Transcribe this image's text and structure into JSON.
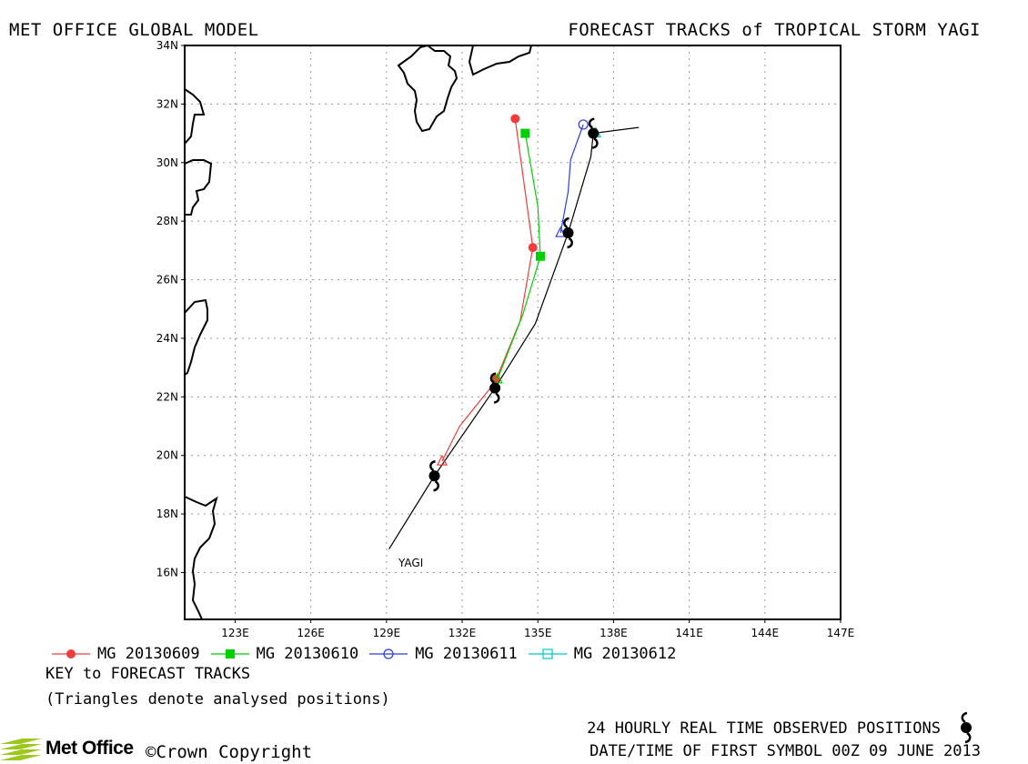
{
  "header": {
    "left_title": "MET OFFICE GLOBAL MODEL",
    "right_title": "FORECAST TRACKS of TROPICAL STORM YAGI"
  },
  "map": {
    "lon_range": [
      121,
      147
    ],
    "lat_range": [
      14.4,
      34
    ],
    "lat_labels": [
      "16N",
      "18N",
      "20N",
      "22N",
      "24N",
      "26N",
      "28N",
      "30N",
      "32N",
      "34N"
    ],
    "lon_labels": [
      "123E",
      "126E",
      "129E",
      "132E",
      "135E",
      "138E",
      "141E",
      "144E",
      "147E"
    ],
    "storm_label": "YAGI",
    "colors": {
      "observed": "#000000",
      "f0609": "#f03c3c",
      "f0610": "#00d000",
      "f0611": "#2a3ce0",
      "f0612": "#00c8c8"
    }
  },
  "chart_data": {
    "type": "scatter",
    "title": "FORECAST TRACKS of TROPICAL STORM YAGI",
    "observed_track": {
      "name": "YAGI",
      "positions": [
        [
          129.1,
          16.8
        ],
        [
          130.9,
          19.3
        ],
        [
          133.3,
          22.3
        ],
        [
          134.9,
          24.5
        ],
        [
          136.2,
          27.6
        ],
        [
          137.1,
          30.2
        ],
        [
          137.2,
          31.0
        ],
        [
          139.0,
          31.2
        ]
      ],
      "symbol_positions": [
        [
          130.9,
          19.3
        ],
        [
          133.3,
          22.3
        ],
        [
          136.2,
          27.6
        ],
        [
          137.2,
          31.0
        ]
      ]
    },
    "series": [
      {
        "name": "MG 20130609",
        "color": "#f03c3c",
        "marker": "circle",
        "analysed": [
          131.2,
          19.8
        ],
        "track": [
          [
            131.2,
            19.8
          ],
          [
            131.9,
            21.0
          ],
          [
            133.3,
            22.5
          ],
          [
            134.3,
            24.6
          ],
          [
            134.8,
            27.1
          ],
          [
            134.1,
            31.5
          ]
        ],
        "markers": [
          [
            133.3,
            22.6
          ],
          [
            134.8,
            27.1
          ],
          [
            134.1,
            31.5
          ]
        ]
      },
      {
        "name": "MG 20130610",
        "color": "#00d000",
        "marker": "square",
        "analysed": [
          133.4,
          22.6
        ],
        "track": [
          [
            133.4,
            22.6
          ],
          [
            134.4,
            24.8
          ],
          [
            135.1,
            26.8
          ],
          [
            135.0,
            28.5
          ],
          [
            134.5,
            31.0
          ]
        ],
        "markers": [
          [
            135.1,
            26.8
          ],
          [
            134.5,
            31.0
          ]
        ]
      },
      {
        "name": "MG 20130611",
        "color": "#2a3ce0",
        "marker": "circle-open",
        "analysed": [
          135.9,
          27.6
        ],
        "track": [
          [
            135.9,
            27.6
          ],
          [
            136.2,
            29.0
          ],
          [
            136.3,
            30.1
          ],
          [
            136.8,
            31.3
          ]
        ],
        "markers": [
          [
            136.8,
            31.3
          ]
        ]
      },
      {
        "name": "MG 20130612",
        "color": "#00c8c8",
        "marker": "square-open",
        "analysed": [
          137.3,
          31.0
        ],
        "track": [
          [
            137.3,
            31.0
          ]
        ],
        "markers": []
      }
    ]
  },
  "legend": {
    "items": [
      {
        "label": "MG 20130609",
        "color": "#f03c3c",
        "marker": "circle"
      },
      {
        "label": "MG 20130610",
        "color": "#00d000",
        "marker": "square"
      },
      {
        "label": "MG 20130611",
        "color": "#2a3ce0",
        "marker": "circle-open"
      },
      {
        "label": "MG 20130612",
        "color": "#00c8c8",
        "marker": "square-open"
      }
    ]
  },
  "footer": {
    "key_title": "KEY to FORECAST TRACKS",
    "key_note": "(Triangles denote analysed positions)",
    "obs_label": "24 HOURLY REAL TIME OBSERVED POSITIONS",
    "date_label": "DATE/TIME OF FIRST SYMBOL 00Z 09 JUNE 2013",
    "copyright": "©Crown Copyright",
    "logo_text": "Met Office"
  }
}
